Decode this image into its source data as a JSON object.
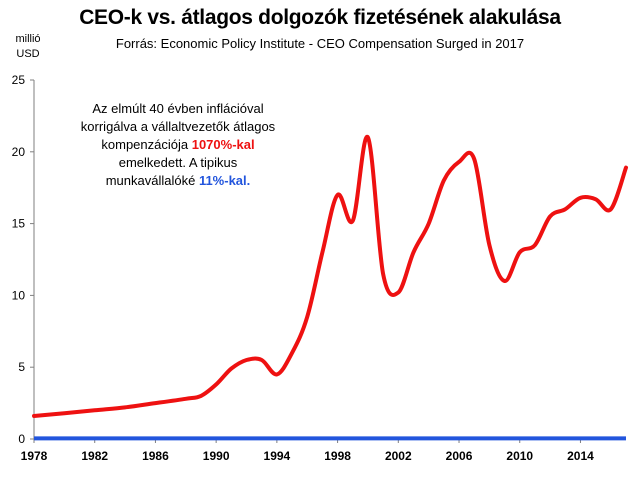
{
  "title": "CEO-k vs. átlagos dolgozók fizetésének alakulása",
  "subtitle": "Forrás: Economic Policy Institute - CEO Compensation Surged  in 2017",
  "unit_line1": "millió",
  "unit_line2": "USD",
  "annotation": {
    "line1": "Az elmúlt 40 évben inflációval",
    "line2": "korrigálva a vállaltvezetők átlagos",
    "line3_pre": "kompenzációja ",
    "line3_hl": "1070%-kal",
    "line4": "emelkedett. A tipikus",
    "line5_pre": "munkavállalóké ",
    "line5_hl": "11%-kal."
  },
  "colors": {
    "ceo": "#ee1111",
    "worker": "#2255dd",
    "axis": "#7f7f7f"
  },
  "chart_data": {
    "type": "line",
    "title": "CEO-k vs. átlagos dolgozók fizetésének alakulása",
    "ylabel": "millió USD",
    "ylim": [
      0,
      25
    ],
    "yticks": [
      0,
      5,
      10,
      15,
      20,
      25
    ],
    "xlim": [
      1978,
      2017
    ],
    "xticks": [
      1978,
      1982,
      1986,
      1990,
      1994,
      1998,
      2002,
      2006,
      2010,
      2014
    ],
    "grid": false,
    "legend": "none",
    "series": [
      {
        "x": [
          1978,
          1980,
          1982,
          1984,
          1986,
          1988,
          1989,
          1990,
          1991,
          1992,
          1993,
          1994,
          1995,
          1996,
          1997,
          1998,
          1999,
          2000,
          2001,
          2002,
          2003,
          2004,
          2005,
          2006,
          2007,
          2008,
          2009,
          2010,
          2011,
          2012,
          2013,
          2014,
          2015,
          2016,
          2017
        ],
        "values": [
          1.6,
          1.8,
          2.0,
          2.2,
          2.5,
          2.8,
          3.0,
          3.8,
          4.9,
          5.5,
          5.5,
          4.5,
          6.0,
          8.5,
          13.0,
          17.0,
          15.2,
          21.0,
          11.5,
          10.2,
          13.0,
          15.0,
          18.0,
          19.3,
          19.5,
          13.5,
          11.0,
          13.0,
          13.5,
          15.5,
          16.0,
          16.8,
          16.7,
          16.0,
          18.9
        ]
      },
      {
        "x": [
          1978,
          2017
        ],
        "values": [
          0.04,
          0.04
        ]
      }
    ]
  }
}
